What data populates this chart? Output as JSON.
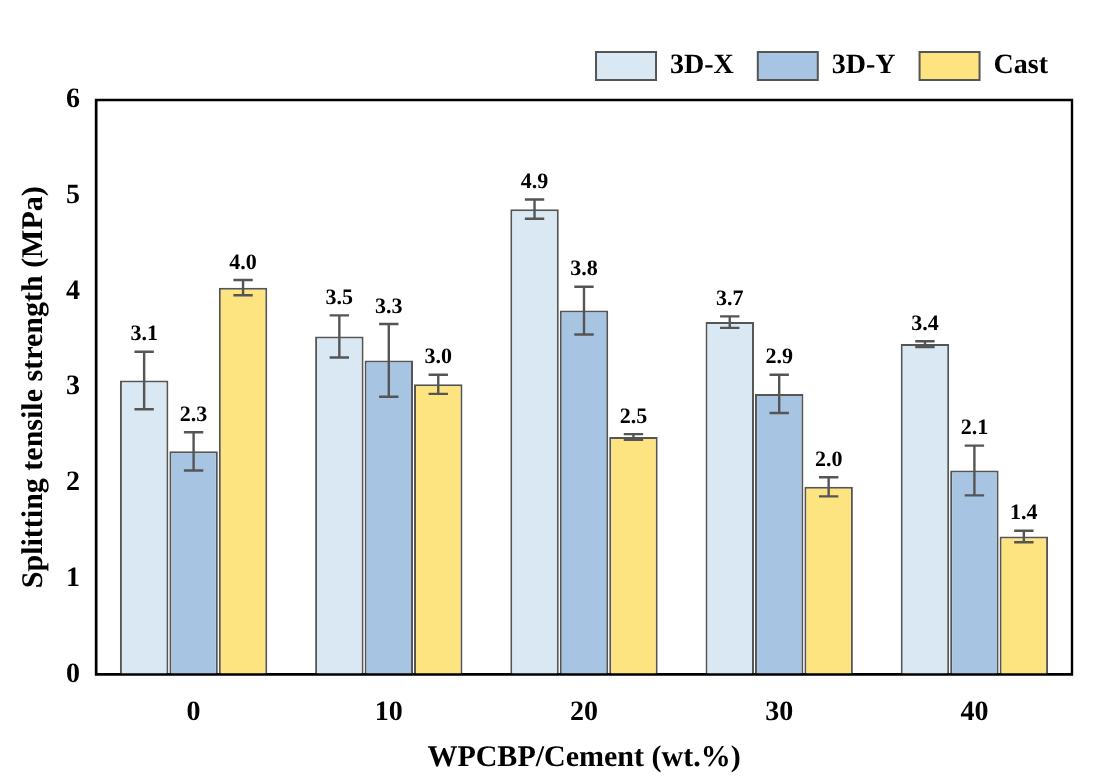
{
  "chart_data": {
    "type": "bar",
    "xlabel": "WPCBP/Cement (wt.%)",
    "ylabel": "Splitting tensile strength (MPa)",
    "categories": [
      "0",
      "10",
      "20",
      "30",
      "40"
    ],
    "series": [
      {
        "name": "3D-X",
        "color": "#d9e8f3",
        "values": [
          3.07,
          3.53,
          4.86,
          3.68,
          3.45
        ],
        "errors": [
          0.3,
          0.22,
          0.1,
          0.06,
          0.03
        ],
        "value_labels": [
          "3.1",
          "3.5",
          "4.9",
          "3.7",
          "3.4"
        ]
      },
      {
        "name": "3D-Y",
        "color": "#a7c4e2",
        "values": [
          2.33,
          3.28,
          3.8,
          2.93,
          2.13
        ],
        "errors": [
          0.2,
          0.38,
          0.25,
          0.2,
          0.26
        ],
        "value_labels": [
          "2.3",
          "3.3",
          "3.8",
          "2.9",
          "2.1"
        ]
      },
      {
        "name": "Cast",
        "color": "#fde480",
        "values": [
          4.04,
          3.03,
          2.48,
          1.96,
          1.44
        ],
        "errors": [
          0.08,
          0.1,
          0.03,
          0.1,
          0.06
        ],
        "value_labels": [
          "4.0",
          "3.0",
          "2.5",
          "2.0",
          "1.4"
        ]
      }
    ],
    "ylim": [
      0,
      6
    ],
    "yticks": [
      0,
      1,
      2,
      3,
      4,
      5,
      6
    ],
    "grid": false,
    "legend": "top right"
  }
}
